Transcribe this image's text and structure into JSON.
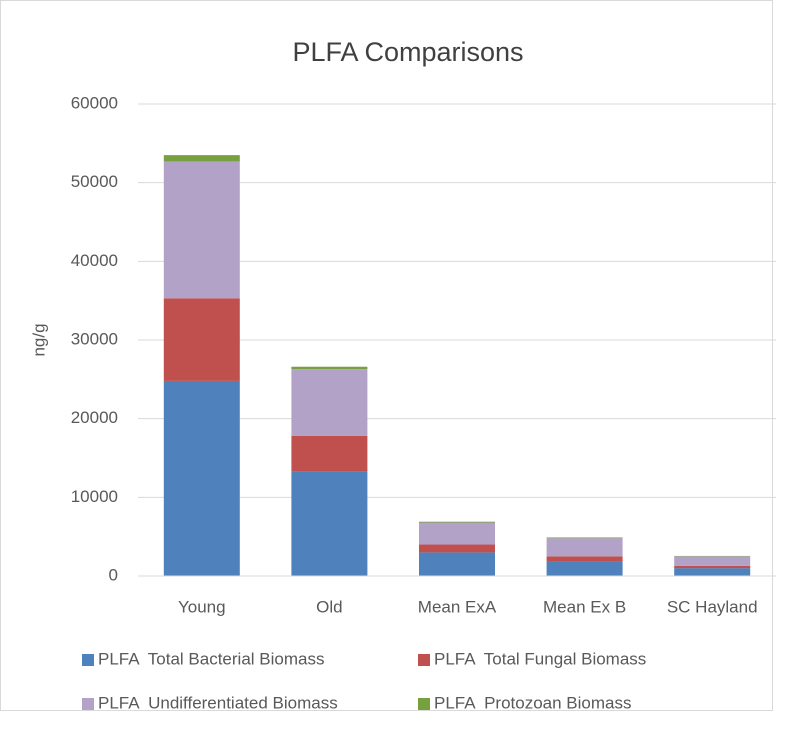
{
  "chart_data": {
    "type": "stacked_bar",
    "title": "PLFA Comparisons",
    "y_label": "ng/g",
    "categories": [
      "Young",
      "Old",
      "Mean ExA",
      "Mean Ex B",
      "SC Hayland"
    ],
    "series": [
      {
        "name": "PLFA  Total Bacterial Biomass",
        "color": "#4f81bd",
        "values": [
          24800,
          13300,
          3000,
          1900,
          1000
        ]
      },
      {
        "name": "PLFA  Total Fungal Biomass",
        "color": "#c0504d",
        "values": [
          10500,
          4500,
          1000,
          600,
          300
        ]
      },
      {
        "name": "PLFA  Undifferentiated Biomass",
        "color": "#b3a2c7",
        "values": [
          17400,
          8500,
          2800,
          2300,
          1200
        ]
      },
      {
        "name": "PLFA  Protozoan Biomass",
        "color": "#77a03f",
        "values": [
          800,
          300,
          100,
          100,
          50
        ]
      }
    ],
    "ylim": [
      0,
      60000
    ],
    "yticks": [
      0,
      10000,
      20000,
      30000,
      40000,
      50000,
      60000
    ],
    "grid": true
  }
}
